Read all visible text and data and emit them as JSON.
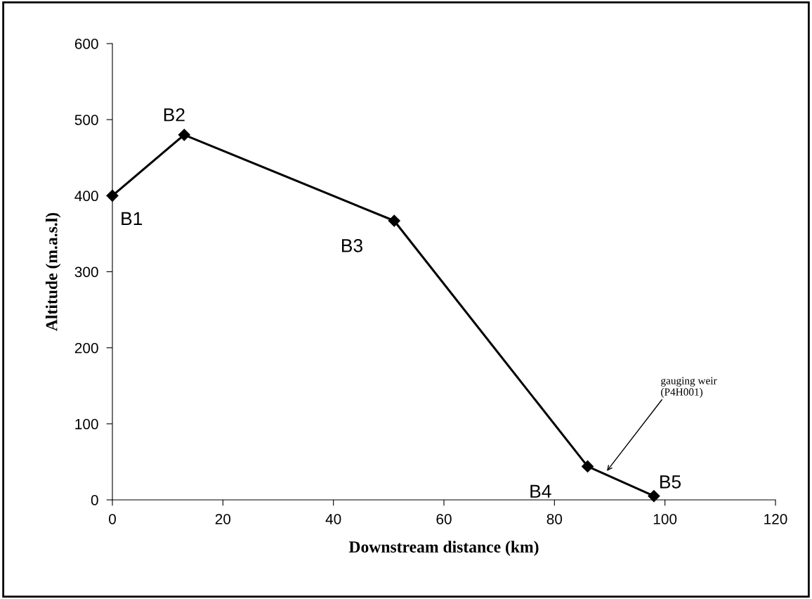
{
  "chart_data": {
    "type": "line",
    "xlabel": "Downstream distance (km)",
    "ylabel": "Altitude (m.a.s.l)",
    "x": [
      0,
      13,
      51,
      86,
      98
    ],
    "series": [
      {
        "color": "#000000",
        "values": [
          400,
          480,
          367,
          44,
          5
        ]
      }
    ],
    "marker": "diamond",
    "line_style": "solid",
    "grid": false,
    "legend": false,
    "xlim": [
      0,
      120
    ],
    "xticks": [
      0,
      20,
      40,
      60,
      80,
      100,
      120
    ],
    "ylim": [
      0,
      600
    ],
    "yticks": [
      0,
      100,
      200,
      300,
      400,
      500,
      600
    ],
    "annotations": [
      {
        "text": "B1",
        "x": 0,
        "y": 400
      },
      {
        "text": "B2",
        "x": 13,
        "y": 480
      },
      {
        "text": "B3",
        "x": 51,
        "y": 367
      },
      {
        "text": "B4",
        "x": 86,
        "y": 44
      },
      {
        "text": "B5",
        "x": 98,
        "y": 5
      },
      {
        "text": "gauging weir\n(P4H001)",
        "x": 89.5,
        "y": 38
      }
    ]
  }
}
